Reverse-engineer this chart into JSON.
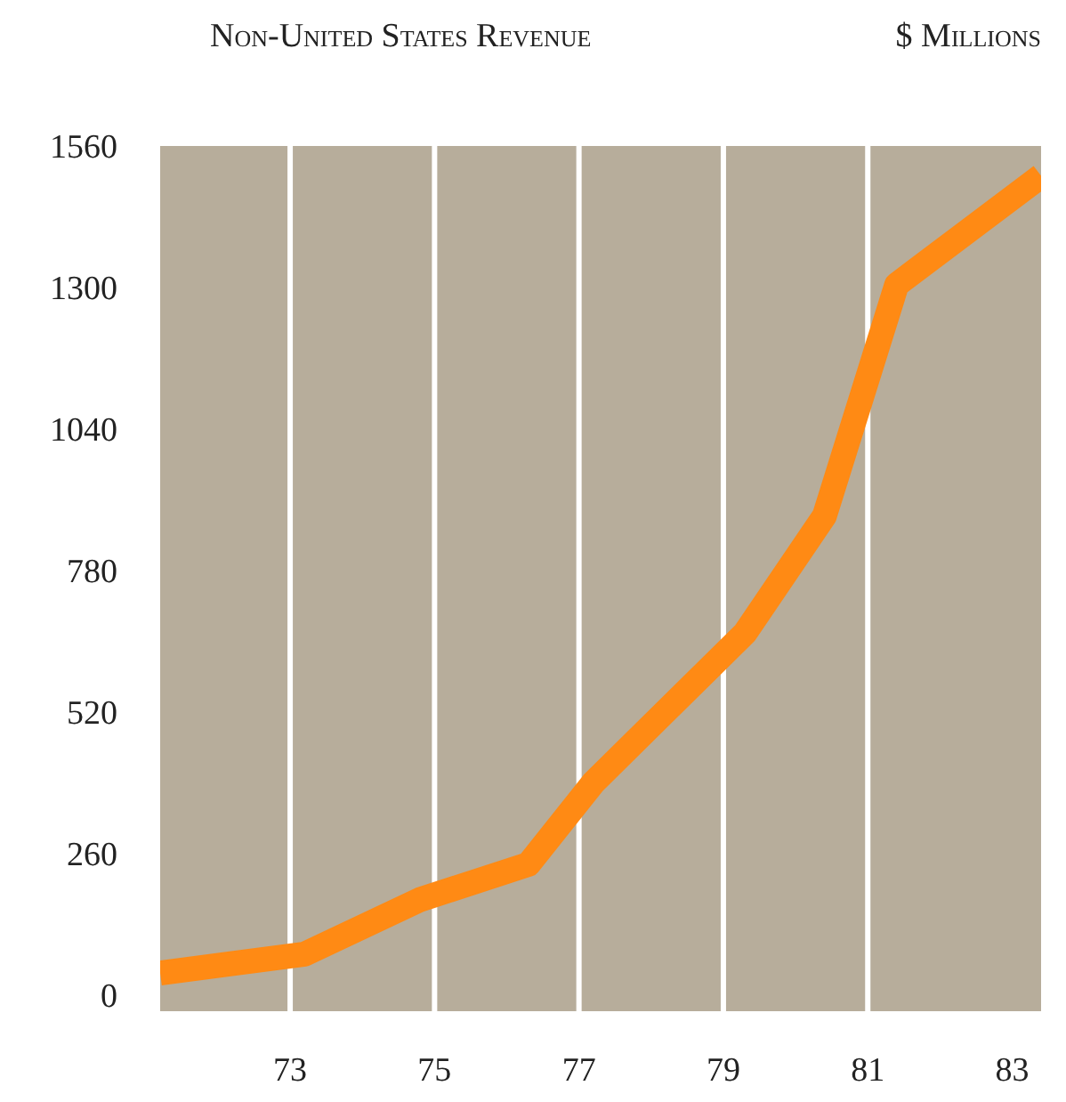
{
  "chart_data": {
    "type": "line",
    "title": "Non-United States Revenue",
    "ylabel": "$ Millions",
    "x": [
      71.2,
      73.2,
      74.8,
      76.3,
      77.2,
      79.3,
      80.4,
      81.4,
      83.4
    ],
    "series": [
      {
        "color": "#ff8a14",
        "values": [
          40,
          75,
          175,
          240,
          390,
          665,
          880,
          1305,
          1505
        ]
      }
    ],
    "xlim": [
      71.2,
      83.4
    ],
    "xticks": [
      73,
      75,
      77,
      79,
      81,
      83
    ],
    "ylim": [
      -30,
      1560
    ],
    "yticks": [
      0,
      260,
      520,
      780,
      1040,
      1300,
      1560
    ],
    "grid": "x",
    "marker": "none",
    "line_style": "solid"
  }
}
